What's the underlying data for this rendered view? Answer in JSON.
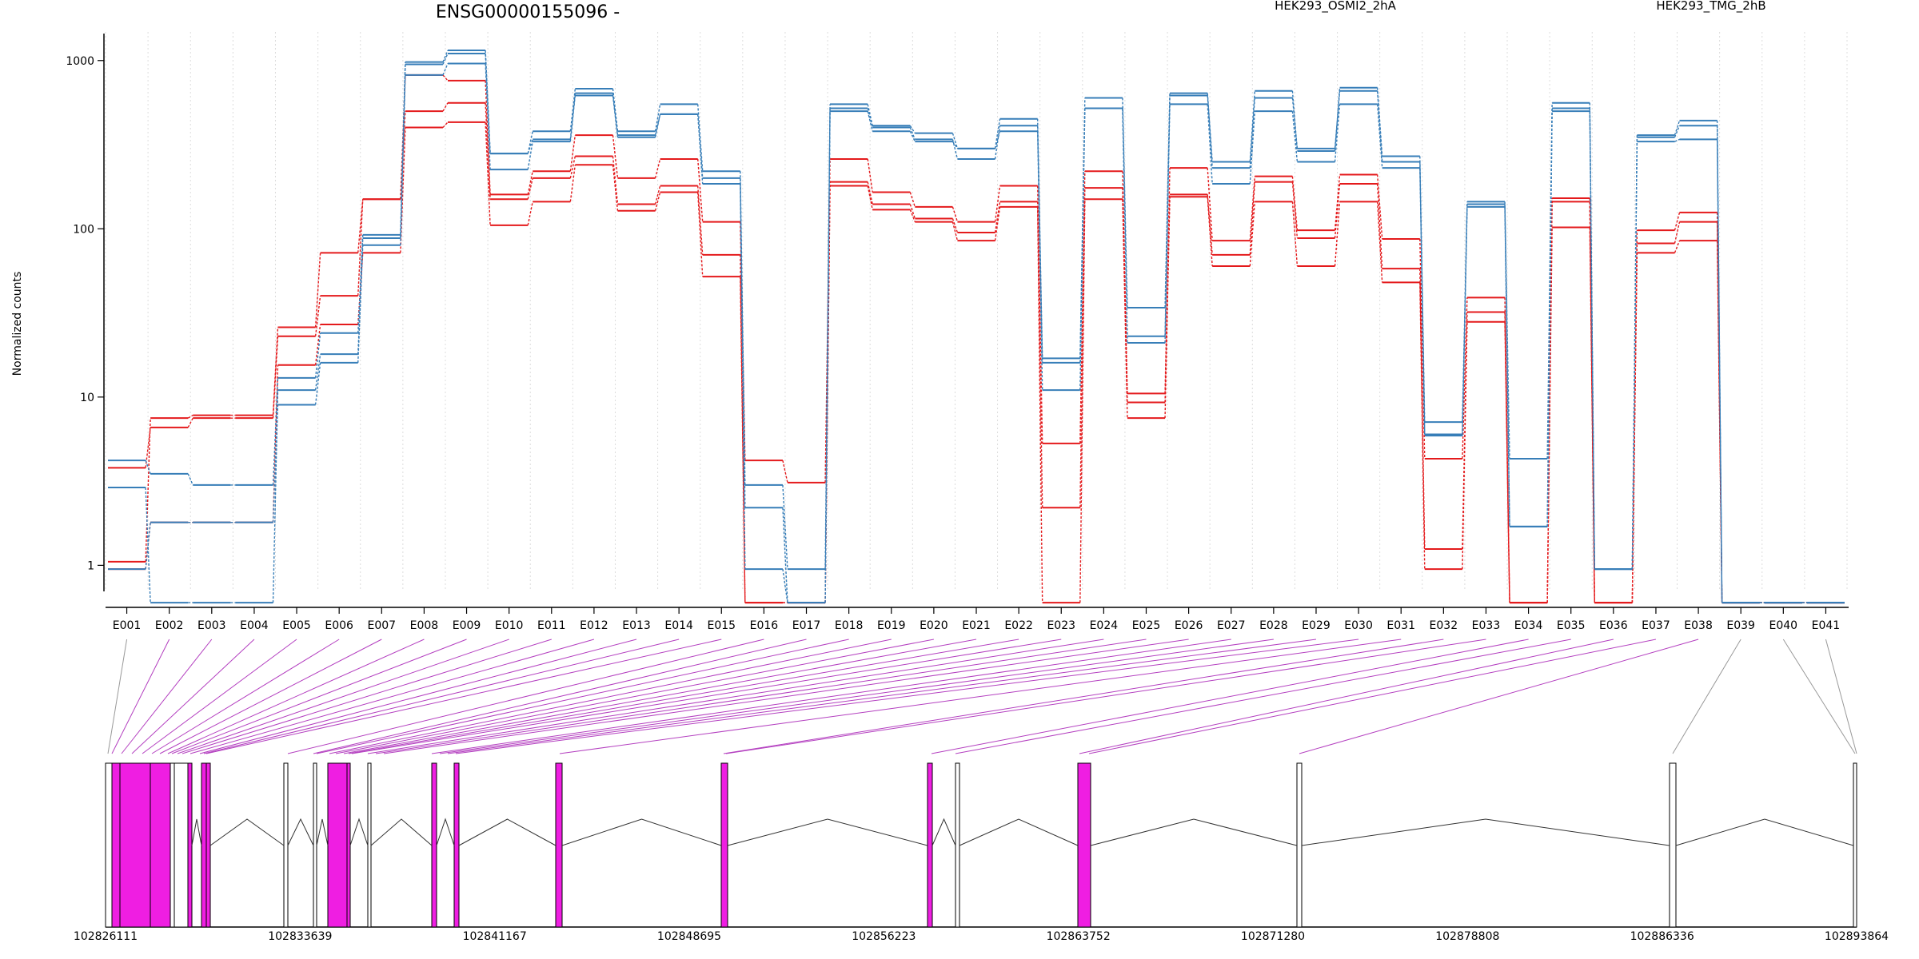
{
  "chart_data": {
    "type": "line",
    "title": "ENSG00000155096 -",
    "ylabel": "Normalized counts",
    "xlabel": "",
    "y_scale": "log",
    "ylim": [
      0.7,
      1400
    ],
    "y_ticks": [
      {
        "value": 1,
        "label": "1"
      },
      {
        "value": 10,
        "label": "10"
      },
      {
        "value": 100,
        "label": "100"
      },
      {
        "value": 1000,
        "label": "1000"
      }
    ],
    "grid": true,
    "legend": [
      {
        "label": "HEK293_OSMI2_2hA",
        "color": "#e41a1c",
        "position": "top-center"
      },
      {
        "label": "HEK293_TMG_2hB",
        "color": "#377eb8",
        "position": "top-right"
      }
    ],
    "categories": [
      "E001",
      "E002",
      "E003",
      "E004",
      "E005",
      "E006",
      "E007",
      "E008",
      "E009",
      "E010",
      "E011",
      "E012",
      "E013",
      "E014",
      "E015",
      "E016",
      "E017",
      "E018",
      "E019",
      "E020",
      "E021",
      "E022",
      "E023",
      "E024",
      "E025",
      "E026",
      "E027",
      "E028",
      "E029",
      "E030",
      "E031",
      "E032",
      "E033",
      "E034",
      "E035",
      "E036",
      "E037",
      "E038",
      "E039",
      "E040",
      "E041"
    ],
    "series": [
      {
        "group": "HEK293_OSMI2_2hA",
        "color": "#e41a1c",
        "values": [
          1.05,
          7.5,
          7.8,
          7.8,
          26,
          72,
          150,
          820,
          760,
          160,
          220,
          360,
          200,
          260,
          110,
          4.2,
          3.1,
          260,
          165,
          135,
          110,
          180,
          5.3,
          220,
          10.5,
          230,
          85,
          205,
          98,
          210,
          87,
          4.3,
          39,
          0.6,
          152,
          0.6,
          98,
          125,
          0.6,
          0.6,
          0.6
        ]
      },
      {
        "group": "HEK293_OSMI2_2hA",
        "color": "#e41a1c",
        "values": [
          3.8,
          6.6,
          7.5,
          7.5,
          23,
          40,
          150,
          500,
          560,
          150,
          200,
          270,
          140,
          180,
          70,
          0.6,
          0.6,
          190,
          140,
          115,
          95,
          145,
          2.2,
          175,
          9.3,
          160,
          70,
          190,
          88,
          185,
          58,
          1.25,
          32,
          0.6,
          145,
          0.6,
          82,
          110,
          0.6,
          0.6,
          0.6
        ]
      },
      {
        "group": "HEK293_OSMI2_2hA",
        "color": "#e41a1c",
        "values": [
          0.95,
          1.8,
          1.8,
          1.8,
          15.5,
          27,
          72,
          400,
          430,
          105,
          145,
          240,
          128,
          165,
          52,
          0.6,
          0.6,
          180,
          130,
          110,
          85,
          135,
          0.6,
          150,
          7.5,
          155,
          60,
          145,
          60,
          145,
          48,
          0.95,
          28,
          0.6,
          102,
          0.6,
          72,
          85,
          0.6,
          0.6,
          0.6
        ]
      },
      {
        "group": "HEK293_TMG_2hB",
        "color": "#377eb8",
        "values": [
          4.2,
          3.5,
          3.0,
          3.0,
          13,
          24,
          92,
          980,
          1150,
          280,
          380,
          680,
          380,
          550,
          220,
          3.0,
          0.95,
          550,
          410,
          370,
          300,
          450,
          17,
          600,
          34,
          640,
          250,
          660,
          290,
          690,
          270,
          7.1,
          145,
          4.3,
          560,
          0.95,
          360,
          440,
          0.6,
          0.6,
          0.6
        ]
      },
      {
        "group": "HEK293_TMG_2hB",
        "color": "#377eb8",
        "values": [
          2.9,
          0.6,
          0.6,
          0.6,
          11,
          18,
          88,
          950,
          1100,
          280,
          340,
          640,
          360,
          480,
          200,
          2.2,
          0.6,
          520,
          400,
          340,
          260,
          410,
          16,
          520,
          23,
          620,
          230,
          600,
          300,
          660,
          250,
          6.0,
          140,
          1.7,
          520,
          0.95,
          350,
          410,
          0.6,
          0.6,
          0.6
        ]
      },
      {
        "group": "HEK293_TMG_2hB",
        "color": "#377eb8",
        "values": [
          0.95,
          1.8,
          1.8,
          1.8,
          9,
          16,
          80,
          820,
          960,
          225,
          330,
          620,
          350,
          480,
          185,
          0.95,
          0.6,
          500,
          380,
          330,
          300,
          380,
          11,
          520,
          21,
          550,
          185,
          500,
          250,
          550,
          230,
          5.9,
          135,
          1.7,
          500,
          0.95,
          330,
          340,
          0.6,
          0.6,
          0.6
        ]
      }
    ],
    "gene_model": {
      "x_axis_labels": [
        "102826111",
        "102833639",
        "102841167",
        "102848695",
        "102856223",
        "102863752",
        "102871280",
        "102878808",
        "102886336",
        "102893864"
      ],
      "highlight_color": "#ef1ee2",
      "tested_exons": [
        "E002",
        "E003",
        "E004",
        "E005",
        "E006",
        "E007",
        "E008",
        "E009",
        "E010",
        "E011",
        "E012",
        "E013",
        "E014",
        "E015",
        "E016",
        "E017",
        "E018",
        "E019",
        "E020",
        "E021",
        "E022",
        "E023",
        "E024",
        "E025",
        "E026",
        "E027",
        "E028",
        "E029",
        "E030",
        "E031",
        "E032",
        "E033",
        "E034",
        "E035",
        "E036",
        "E037",
        "E038"
      ]
    }
  }
}
